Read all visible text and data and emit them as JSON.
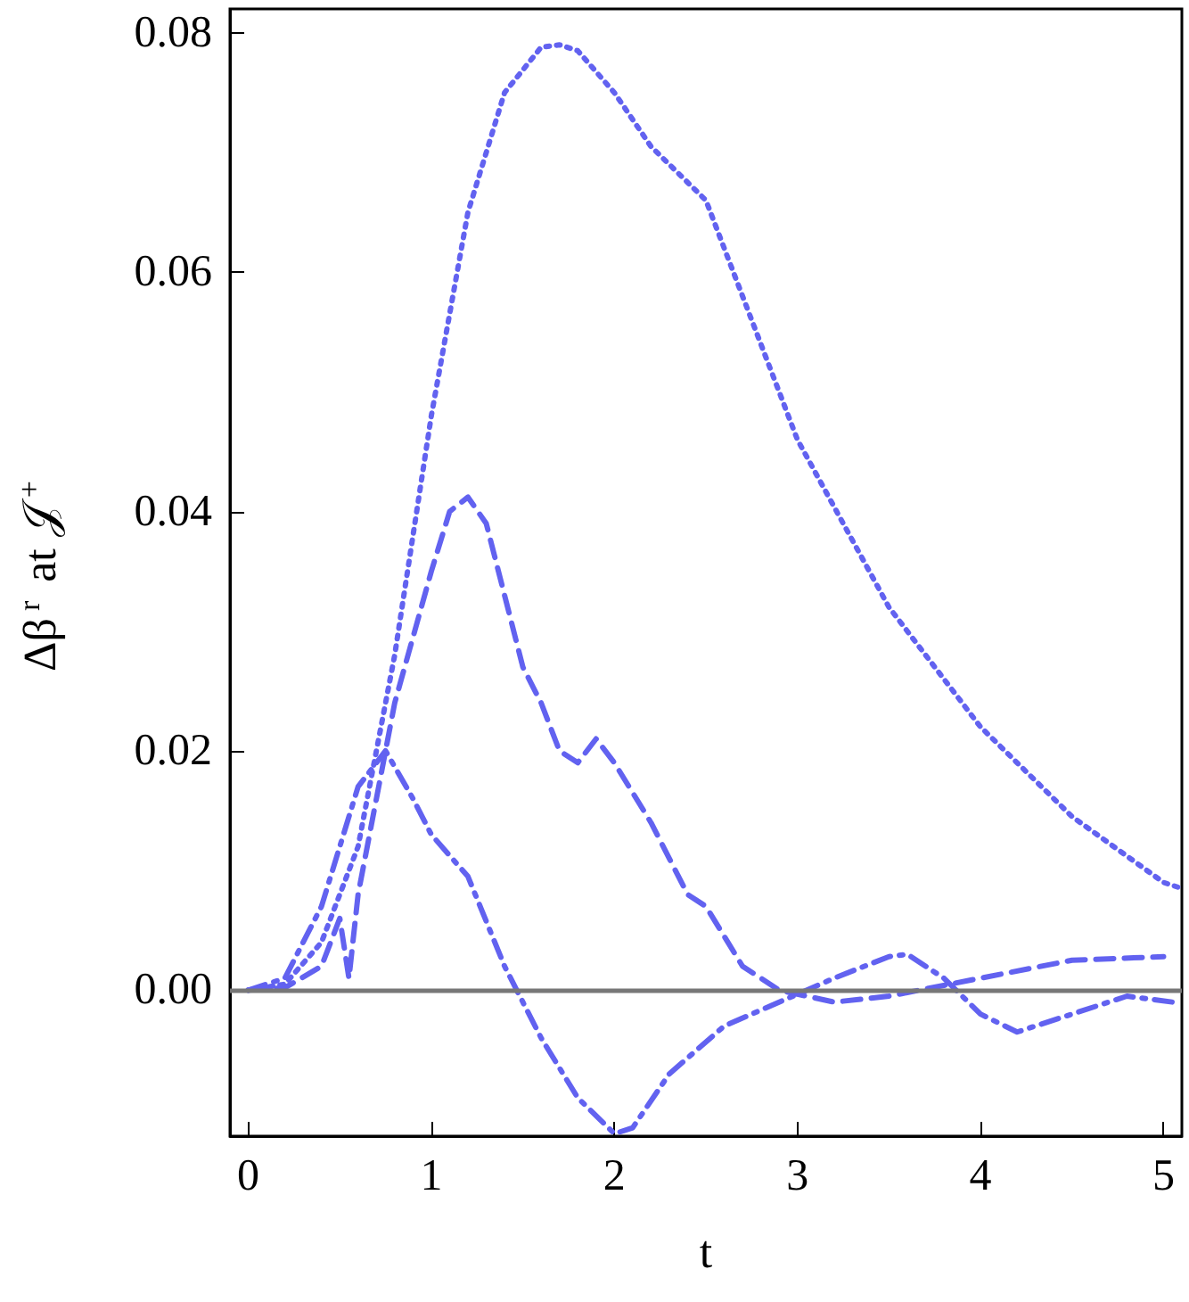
{
  "chart_data": {
    "type": "line",
    "xlabel": "t",
    "ylabel": "Δβ$^{r}$ at 𝒥$^{+}$",
    "xlim": [
      -0.1,
      5.1
    ],
    "xticks": [
      0,
      1,
      2,
      3,
      4,
      5
    ],
    "ylim": [
      -0.0122,
      0.082
    ],
    "yticks": [
      {
        "value": 0,
        "label": "0.00"
      },
      {
        "value": 0.02,
        "label": "0.02"
      },
      {
        "value": 0.04,
        "label": "0.04"
      },
      {
        "value": 0.06,
        "label": "0.06"
      },
      {
        "value": 0.08,
        "label": "0.08"
      }
    ],
    "grid": false,
    "marker": "none",
    "ref_lines": [
      {
        "axis": "y",
        "value": 0,
        "color": "#777777",
        "line_style": "solid"
      }
    ],
    "series": [
      {
        "color": "#6262f0",
        "line_style": "dotted",
        "x": [
          0,
          0.2,
          0.4,
          0.6,
          0.8,
          1.0,
          1.2,
          1.4,
          1.6,
          1.7,
          1.8,
          2.0,
          2.2,
          2.3,
          2.5,
          2.8,
          3.0,
          3.5,
          4.0,
          4.5,
          5.0,
          5.1
        ],
        "values": [
          0,
          0.0005,
          0.004,
          0.012,
          0.028,
          0.048,
          0.065,
          0.075,
          0.0788,
          0.079,
          0.0785,
          0.075,
          0.0705,
          0.069,
          0.066,
          0.054,
          0.046,
          0.032,
          0.022,
          0.0145,
          0.009,
          0.0085
        ]
      },
      {
        "color": "#6262f0",
        "line_style": "dashed",
        "x": [
          0,
          0.2,
          0.4,
          0.5,
          0.55,
          0.6,
          0.8,
          1.0,
          1.1,
          1.2,
          1.3,
          1.4,
          1.5,
          1.6,
          1.7,
          1.8,
          1.9,
          2.0,
          2.2,
          2.4,
          2.5,
          2.7,
          2.9,
          3.2,
          3.5,
          4.0,
          4.5,
          5.0
        ],
        "values": [
          0,
          0.0002,
          0.002,
          0.006,
          0.001,
          0.008,
          0.024,
          0.035,
          0.04,
          0.0412,
          0.039,
          0.033,
          0.027,
          0.024,
          0.02,
          0.019,
          0.021,
          0.019,
          0.014,
          0.008,
          0.007,
          0.002,
          0,
          -0.001,
          -0.0005,
          0.001,
          0.0025,
          0.0028
        ]
      },
      {
        "color": "#6262f0",
        "line_style": "dashdot",
        "x": [
          0,
          0.2,
          0.4,
          0.6,
          0.75,
          0.9,
          1.0,
          1.2,
          1.4,
          1.5,
          1.6,
          1.8,
          2.0,
          2.1,
          2.3,
          2.6,
          2.9,
          3.2,
          3.5,
          3.6,
          3.8,
          4.0,
          4.2,
          4.5,
          4.8,
          5.05
        ],
        "values": [
          0,
          0.001,
          0.007,
          0.017,
          0.02,
          0.016,
          0.013,
          0.0095,
          0.002,
          -0.001,
          -0.004,
          -0.009,
          -0.012,
          -0.0115,
          -0.007,
          -0.003,
          -0.001,
          0.001,
          0.0028,
          0.003,
          0.001,
          -0.002,
          -0.0035,
          -0.002,
          -0.0005,
          -0.001
        ]
      }
    ]
  }
}
